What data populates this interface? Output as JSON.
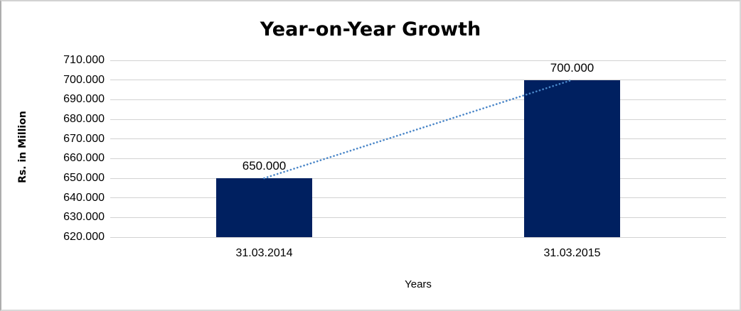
{
  "chart_data": {
    "type": "bar",
    "title": "Year-on-Year Growth",
    "xlabel": "Years",
    "ylabel": "Rs. in Million",
    "categories": [
      "31.03.2014",
      "31.03.2015"
    ],
    "values": [
      650,
      700
    ],
    "value_labels": [
      "650.000",
      "700.000"
    ],
    "ylim": [
      620,
      710
    ],
    "yticks": [
      620,
      630,
      640,
      650,
      660,
      670,
      680,
      690,
      700,
      710
    ],
    "ytick_labels": [
      "620.000",
      "630.000",
      "640.000",
      "650.000",
      "660.000",
      "670.000",
      "680.000",
      "690.000",
      "700.000",
      "710.000"
    ],
    "grid": true,
    "legend": "none",
    "trendline": {
      "type": "linear",
      "style": "dotted",
      "connects": [
        "31.03.2014",
        "31.03.2015"
      ]
    },
    "colors": {
      "bar": "#002060",
      "gridline": "#d2d2d2",
      "trendline": "#4a86c8",
      "text": "#000000"
    }
  }
}
